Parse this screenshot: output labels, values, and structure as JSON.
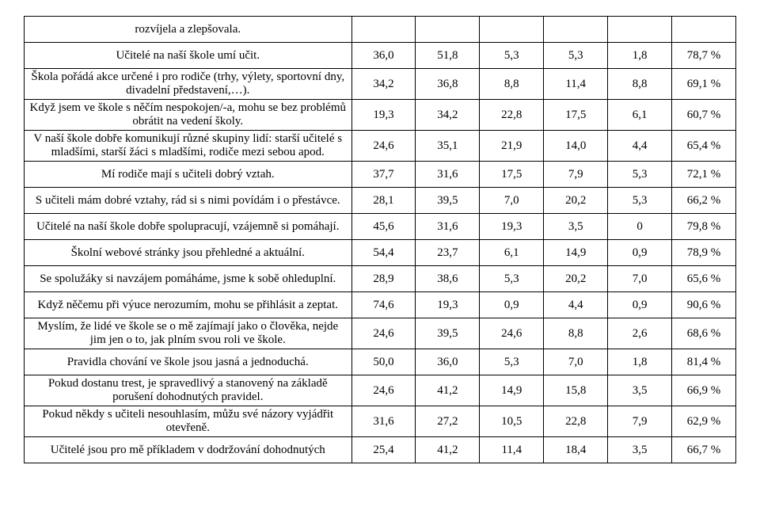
{
  "table": {
    "rows": [
      {
        "label": "rozvíjela a zlepšovala.",
        "v1": "",
        "v2": "",
        "v3": "",
        "v4": "",
        "v5": "",
        "v6": ""
      },
      {
        "label": "Učitelé na naší škole umí učit.",
        "v1": "36,0",
        "v2": "51,8",
        "v3": "5,3",
        "v4": "5,3",
        "v5": "1,8",
        "v6": "78,7 %"
      },
      {
        "label": "Škola pořádá akce určené i pro rodiče (trhy, výlety, sportovní dny, divadelní představení,…).",
        "v1": "34,2",
        "v2": "36,8",
        "v3": "8,8",
        "v4": "11,4",
        "v5": "8,8",
        "v6": "69,1 %"
      },
      {
        "label": "Když jsem ve škole s něčím nespokojen/-a, mohu se bez problémů obrátit na vedení školy.",
        "v1": "19,3",
        "v2": "34,2",
        "v3": "22,8",
        "v4": "17,5",
        "v5": "6,1",
        "v6": "60,7 %"
      },
      {
        "label": "V naší škole dobře komunikují různé skupiny lidí: starší učitelé s mladšími, starší žáci s mladšími, rodiče mezi sebou apod.",
        "v1": "24,6",
        "v2": "35,1",
        "v3": "21,9",
        "v4": "14,0",
        "v5": "4,4",
        "v6": "65,4 %"
      },
      {
        "label": "Mí rodiče mají s učiteli dobrý vztah.",
        "v1": "37,7",
        "v2": "31,6",
        "v3": "17,5",
        "v4": "7,9",
        "v5": "5,3",
        "v6": "72,1 %"
      },
      {
        "label": "S učiteli mám dobré vztahy, rád si s nimi povídám i o přestávce.",
        "v1": "28,1",
        "v2": "39,5",
        "v3": "7,0",
        "v4": "20,2",
        "v5": "5,3",
        "v6": "66,2 %"
      },
      {
        "label": "Učitelé na naší škole dobře spolupracují, vzájemně si pomáhají.",
        "v1": "45,6",
        "v2": "31,6",
        "v3": "19,3",
        "v4": "3,5",
        "v5": "0",
        "v6": "79,8 %"
      },
      {
        "label": "Školní webové stránky jsou přehledné a aktuální.",
        "v1": "54,4",
        "v2": "23,7",
        "v3": "6,1",
        "v4": "14,9",
        "v5": "0,9",
        "v6": "78,9 %"
      },
      {
        "label": "Se spolužáky si navzájem pomáháme, jsme k sobě ohleduplní.",
        "v1": "28,9",
        "v2": "38,6",
        "v3": "5,3",
        "v4": "20,2",
        "v5": "7,0",
        "v6": "65,6 %"
      },
      {
        "label": "Když něčemu při výuce nerozumím, mohu se přihlásit a zeptat.",
        "v1": "74,6",
        "v2": "19,3",
        "v3": "0,9",
        "v4": "4,4",
        "v5": "0,9",
        "v6": "90,6 %"
      },
      {
        "label": "Myslím, že lidé ve škole se o mě zajímají jako o člověka, nejde jim jen o to, jak plním svou roli ve škole.",
        "v1": "24,6",
        "v2": "39,5",
        "v3": "24,6",
        "v4": "8,8",
        "v5": "2,6",
        "v6": "68,6 %"
      },
      {
        "label": "Pravidla chování ve škole jsou jasná a jednoduchá.",
        "v1": "50,0",
        "v2": "36,0",
        "v3": "5,3",
        "v4": "7,0",
        "v5": "1,8",
        "v6": "81,4 %"
      },
      {
        "label": "Pokud dostanu trest, je spravedlivý a stanovený na základě porušení dohodnutých pravidel.",
        "v1": "24,6",
        "v2": "41,2",
        "v3": "14,9",
        "v4": "15,8",
        "v5": "3,5",
        "v6": "66,9 %"
      },
      {
        "label": "Pokud někdy s učiteli nesouhlasím, můžu své názory vyjádřit otevřeně.",
        "v1": "31,6",
        "v2": "27,2",
        "v3": "10,5",
        "v4": "22,8",
        "v5": "7,9",
        "v6": "62,9 %"
      },
      {
        "label": "Učitelé jsou pro mě příkladem v dodržování dohodnutých",
        "v1": "25,4",
        "v2": "41,2",
        "v3": "11,4",
        "v4": "18,4",
        "v5": "3,5",
        "v6": "66,7 %"
      }
    ]
  }
}
